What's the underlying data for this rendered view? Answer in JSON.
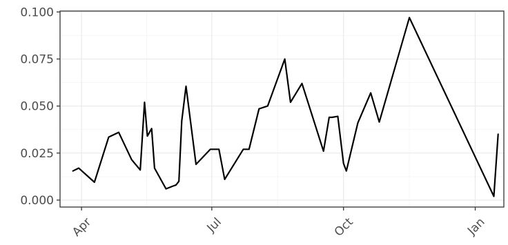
{
  "chart_data": {
    "type": "line",
    "title": "",
    "xlabel": "",
    "ylabel": "",
    "x_ticks": [
      {
        "date": "2018-04-01",
        "label": "Apr"
      },
      {
        "date": "2018-07-01",
        "label": "Jul"
      },
      {
        "date": "2018-10-01",
        "label": "Oct"
      },
      {
        "date": "2019-01-01",
        "label": "Jan"
      }
    ],
    "y_ticks": [
      {
        "value": 0.0,
        "label": "0.000"
      },
      {
        "value": 0.025,
        "label": "0.025"
      },
      {
        "value": 0.05,
        "label": "0.050"
      },
      {
        "value": 0.075,
        "label": "0.075"
      },
      {
        "value": 0.1,
        "label": "0.100"
      }
    ],
    "xlim": [
      "2018-03-17",
      "2019-01-21"
    ],
    "ylim": [
      -0.0037,
      0.1005
    ],
    "grid": true,
    "legend": "none",
    "line_color": "#000000",
    "series": [
      {
        "x": [
          "2018-03-26",
          "2018-03-30",
          "2018-04-10",
          "2018-04-20",
          "2018-04-27",
          "2018-05-06",
          "2018-05-12",
          "2018-05-15",
          "2018-05-17",
          "2018-05-20",
          "2018-05-22",
          "2018-05-30",
          "2018-06-04",
          "2018-06-06",
          "2018-06-08",
          "2018-06-10",
          "2018-06-13",
          "2018-06-20",
          "2018-06-30",
          "2018-07-06",
          "2018-07-10",
          "2018-07-23",
          "2018-07-27",
          "2018-08-03",
          "2018-08-09",
          "2018-08-21",
          "2018-08-25",
          "2018-09-02",
          "2018-09-17",
          "2018-09-21",
          "2018-09-23",
          "2018-09-27",
          "2018-10-01",
          "2018-10-03",
          "2018-10-11",
          "2018-10-20",
          "2018-10-26",
          "2018-11-16",
          "2019-01-14",
          "2019-01-17"
        ],
        "y": [
          0.0155,
          0.017,
          0.0095,
          0.0335,
          0.036,
          0.0215,
          0.016,
          0.052,
          0.034,
          0.038,
          0.017,
          0.006,
          0.0075,
          0.008,
          0.01,
          0.042,
          0.0605,
          0.019,
          0.027,
          0.027,
          0.011,
          0.027,
          0.027,
          0.0485,
          0.05,
          0.075,
          0.052,
          0.062,
          0.026,
          0.044,
          0.044,
          0.0445,
          0.0195,
          0.0155,
          0.041,
          0.057,
          0.0415,
          0.097,
          0.002,
          0.035
        ]
      }
    ]
  }
}
